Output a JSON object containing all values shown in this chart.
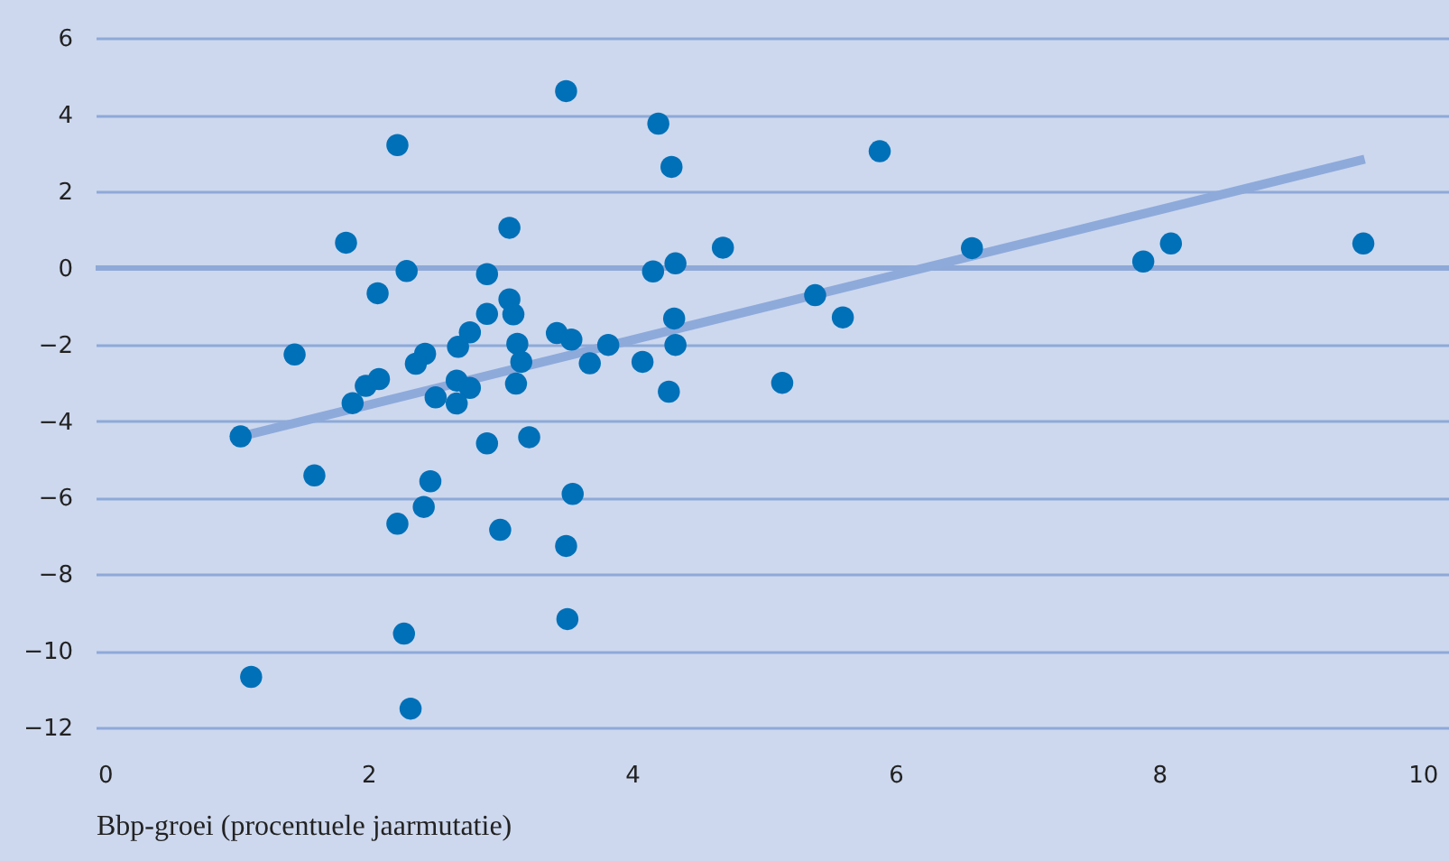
{
  "chart_data": {
    "type": "scatter",
    "xlabel": "Bbp-groei (procentuele jaarmutatie)",
    "xlim": [
      -0.07,
      10.2
    ],
    "ylim": [
      -12,
      7
    ],
    "xticks": [
      0,
      2,
      4,
      6,
      8,
      10
    ],
    "yticks": [
      -12,
      -10,
      -8,
      -6,
      -4,
      -2,
      0,
      2,
      4,
      6
    ],
    "grid": "y",
    "ref_lines": [
      {
        "axis": "y",
        "value": 0,
        "color": "#8ea9d8"
      }
    ],
    "series": [
      {
        "marker": "circle",
        "color": "#0070b8",
        "x": [
          3.5,
          2.22,
          1.83,
          3.07,
          2.29,
          2.9,
          2.07,
          3.07,
          3.1,
          2.9,
          3.43,
          3.54,
          3.82,
          3.68,
          3.13,
          3.16,
          3.12,
          2.77,
          2.68,
          1.44,
          2.43,
          2.36,
          2.08,
          1.98,
          1.88,
          2.51,
          2.67,
          2.77,
          2.67,
          1.03,
          1.59,
          2.47,
          2.42,
          2.22,
          3.0,
          2.9,
          3.22,
          3.55,
          3.5,
          3.51,
          2.27,
          1.11,
          2.32,
          4.2,
          4.3,
          5.88,
          4.69,
          4.16,
          4.33,
          6.58,
          5.39,
          5.6,
          4.32,
          4.33,
          4.08,
          4.28,
          5.14,
          7.88,
          8.09,
          9.55
        ],
        "values": [
          4.62,
          3.21,
          0.66,
          1.05,
          -0.08,
          -0.16,
          -0.66,
          -0.82,
          -1.21,
          -1.2,
          -1.7,
          -1.87,
          -2.01,
          -2.49,
          -1.98,
          -2.45,
          -3.02,
          -1.68,
          -2.06,
          -2.26,
          -2.24,
          -2.5,
          -2.9,
          -3.08,
          -3.53,
          -3.38,
          -2.94,
          -3.13,
          -3.54,
          -4.4,
          -5.42,
          -5.57,
          -6.24,
          -6.68,
          -6.84,
          -4.58,
          -4.42,
          -5.9,
          -7.26,
          -9.17,
          -9.55,
          -10.68,
          -11.51,
          3.77,
          2.64,
          3.05,
          0.53,
          -0.09,
          0.12,
          0.52,
          -0.71,
          -1.29,
          -1.32,
          -2.01,
          -2.45,
          -3.23,
          -3.0,
          0.17,
          0.64,
          0.64
        ]
      },
      {
        "type": "line",
        "color": "#8eaadb",
        "x": [
          1.03,
          9.56
        ],
        "values": [
          -4.4,
          2.84
        ]
      }
    ]
  }
}
